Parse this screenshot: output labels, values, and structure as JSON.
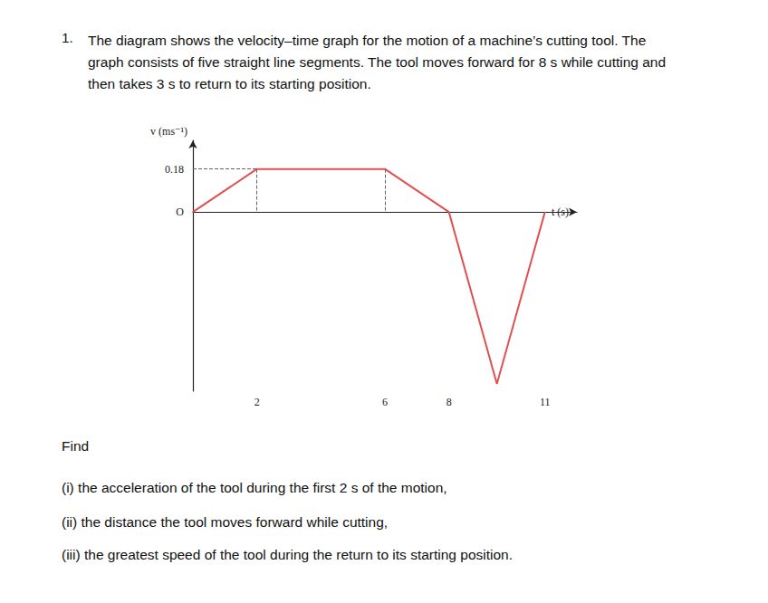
{
  "question": {
    "number": "1.",
    "lines": [
      "The diagram shows the velocity–time graph for the motion of a machine’s cutting tool. The",
      "graph consists of five straight line segments. The tool moves forward for 8 s while cutting and",
      "then takes 3 s to return to its starting position."
    ]
  },
  "chart_data": {
    "type": "line",
    "x_label": "t (s)",
    "y_label": "v (ms⁻¹)",
    "x": [
      0,
      2,
      6,
      8,
      9.5,
      11
    ],
    "values": [
      0,
      0.18,
      0.18,
      0,
      -0.72,
      0
    ],
    "color": "#e05050",
    "xlim": [
      0,
      12
    ],
    "xticks": [
      2,
      6,
      8,
      11
    ],
    "ylim": [
      -0.75,
      0.3
    ],
    "yticks": [
      {
        "value": 0,
        "label": "O"
      },
      0.18
    ],
    "grid": false
  },
  "prompt": "Find",
  "parts": [
    "(i) the acceleration of the tool during the first 2 s of the motion,",
    "(ii) the distance the tool moves forward while cutting,",
    "(iii) the greatest speed of the tool during the return to its starting position."
  ]
}
